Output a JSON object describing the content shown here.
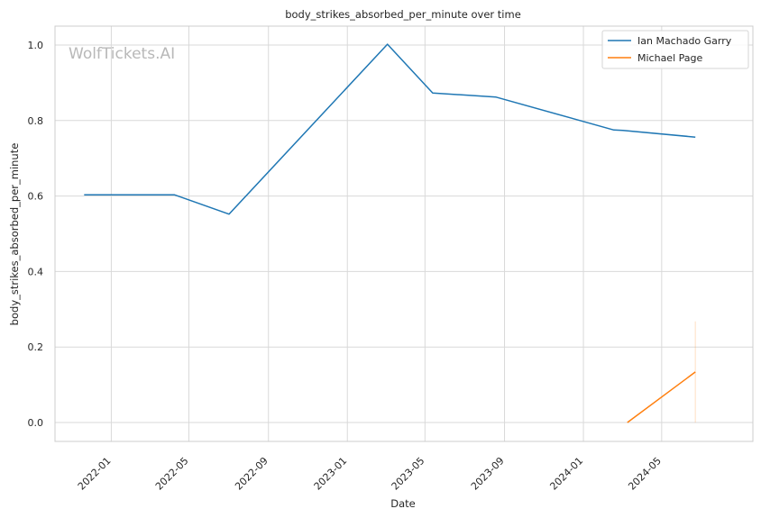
{
  "chart_data": {
    "type": "line",
    "title": "body_strikes_absorbed_per_minute over time",
    "xlabel": "Date",
    "ylabel": "body_strikes_absorbed_per_minute",
    "watermark": "WolfTickets.AI",
    "x_ticks": [
      "2022-01",
      "2022-05",
      "2022-09",
      "2023-01",
      "2023-05",
      "2023-09",
      "2024-01",
      "2024-05"
    ],
    "y_ticks": [
      0.0,
      0.2,
      0.4,
      0.6,
      0.8,
      1.0
    ],
    "y_tick_labels": [
      "0.0",
      "0.2",
      "0.4",
      "0.6",
      "0.8",
      "1.0"
    ],
    "xlim": [
      "2021-10-06",
      "2024-09-19"
    ],
    "ylim": [
      -0.05,
      1.05
    ],
    "grid": true,
    "legend_position": "top-right",
    "series": [
      {
        "name": "Ian Machado Garry",
        "color": "#1f77b4",
        "x": [
          "2021-11-20",
          "2022-04-09",
          "2022-07-02",
          "2023-03-04",
          "2023-05-13",
          "2023-08-19",
          "2024-02-17",
          "2024-03-02",
          "2024-06-22"
        ],
        "y": [
          0.603,
          0.603,
          0.552,
          1.002,
          0.873,
          0.862,
          0.775,
          0.774,
          0.756
        ]
      },
      {
        "name": "Michael Page",
        "color": "#ff7f0e",
        "x": [
          "2024-03-09",
          "2024-06-22"
        ],
        "y": [
          0.0,
          0.134
        ]
      }
    ],
    "band": {
      "series": "Michael Page",
      "x": "2024-06-22",
      "low": 0.0,
      "high": 0.268
    }
  }
}
